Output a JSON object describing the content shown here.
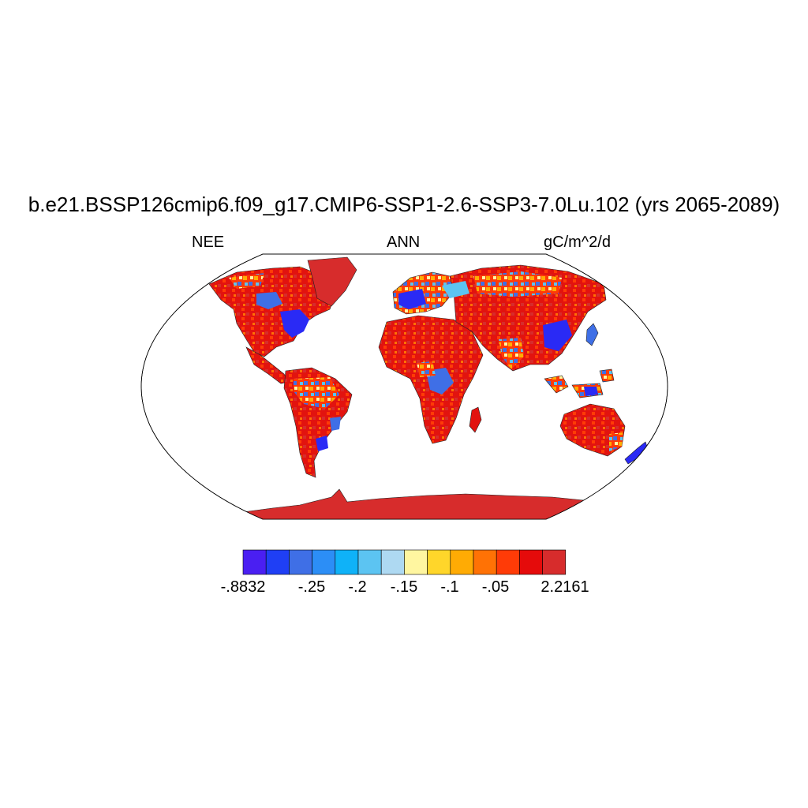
{
  "figure": {
    "title": "b.e21.BSSP126cmip6.f09_g17.CMIP6-SSP1-2.6-SSP3-7.0Lu.102 (yrs 2065-2089)",
    "left_label": "NEE",
    "center_label": "ANN",
    "right_label": "gC/m^2/d"
  },
  "colorbar": {
    "colors": [
      "#4a1ff2",
      "#1f3ff5",
      "#3f6fe6",
      "#2c8ef6",
      "#0fb2f8",
      "#5cc4f2",
      "#aed9f2",
      "#fff6a0",
      "#ffd62a",
      "#ffab04",
      "#ff7205",
      "#ff3b07",
      "#e50b0b",
      "#d72c2c"
    ],
    "labels": [
      "-.8832",
      "-.25",
      "-.2",
      "-.15",
      "-.1",
      "-.05",
      "2.2161"
    ]
  },
  "legend": {
    "strong_uptake": "#2a2af5",
    "weak": "#fff0a0",
    "strong_release": "#d72c2c"
  }
}
